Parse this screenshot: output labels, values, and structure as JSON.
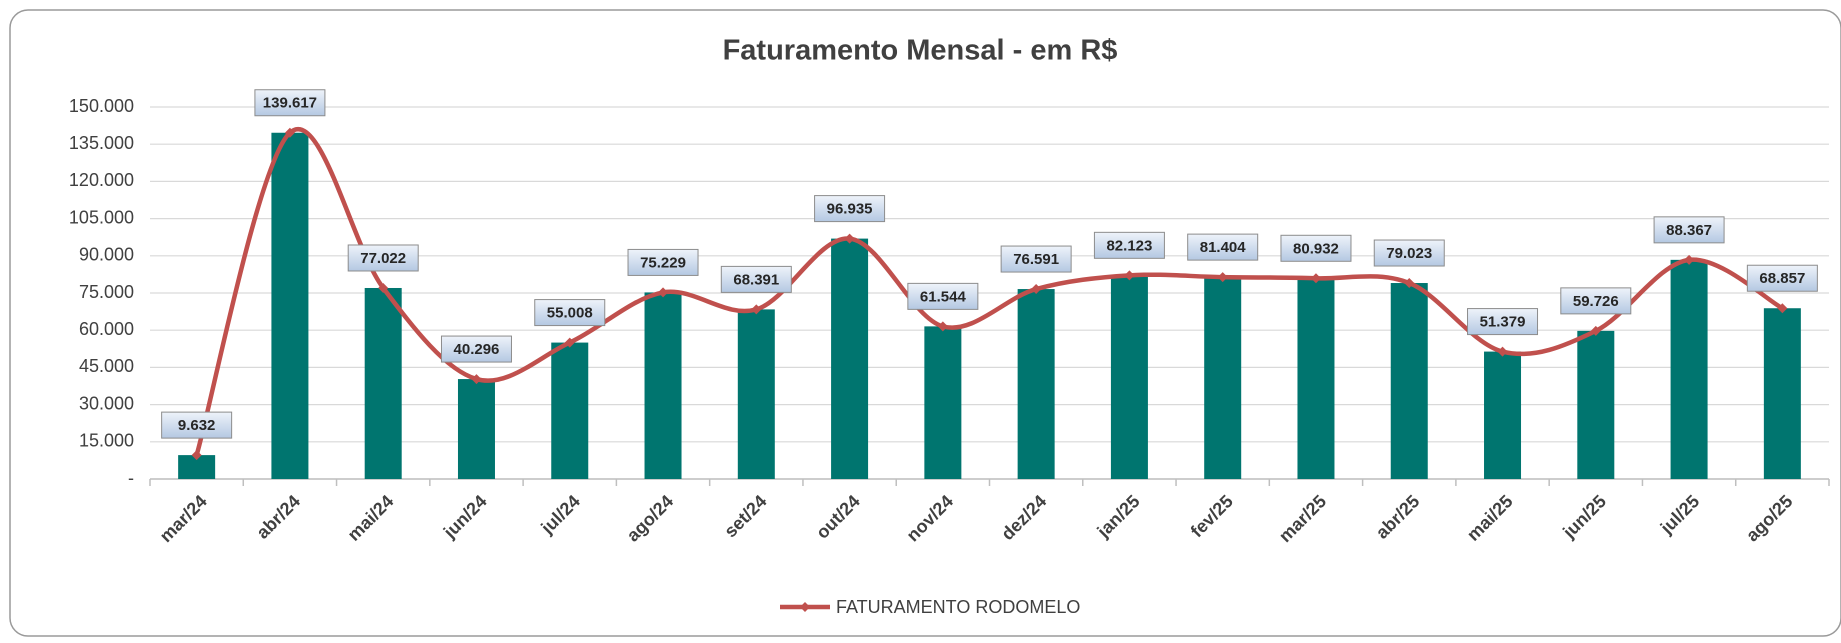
{
  "chart_data": {
    "type": "bar_line",
    "title": "Faturamento Mensal - em R$",
    "categories": [
      "mar/24",
      "abr/24",
      "mai/24",
      "jun/24",
      "jul/24",
      "ago/24",
      "set/24",
      "out/24",
      "nov/24",
      "dez/24",
      "jan/25",
      "fev/25",
      "mar/25",
      "abr/25",
      "mai/25",
      "jun/25",
      "jul/25",
      "ago/25"
    ],
    "series": [
      {
        "name": "FATURAMENTO RODOMELO",
        "color": "#c0504d",
        "bar_color": "#00756f",
        "values": [
          9632,
          139617,
          77022,
          40296,
          55008,
          75229,
          68391,
          96935,
          61544,
          76591,
          82123,
          81404,
          80932,
          79023,
          51379,
          59726,
          88367,
          68857
        ],
        "value_labels": [
          "9.632",
          "139.617",
          "77.022",
          "40.296",
          "55.008",
          "75.229",
          "68.391",
          "96.935",
          "61.544",
          "76.591",
          "82.123",
          "81.404",
          "80.932",
          "79.023",
          "51.379",
          "59.726",
          "88.367",
          "68.857"
        ]
      }
    ],
    "ylim": [
      0,
      150000
    ],
    "yticks": [
      {
        "value": 0,
        "label": "-"
      },
      {
        "value": 15000,
        "label": "15.000"
      },
      {
        "value": 30000,
        "label": "30.000"
      },
      {
        "value": 45000,
        "label": "45.000"
      },
      {
        "value": 60000,
        "label": "60.000"
      },
      {
        "value": 75000,
        "label": "75.000"
      },
      {
        "value": 90000,
        "label": "90.000"
      },
      {
        "value": 105000,
        "label": "105.000"
      },
      {
        "value": 120000,
        "label": "120.000"
      },
      {
        "value": 135000,
        "label": "135.000"
      },
      {
        "value": 150000,
        "label": "150.000"
      }
    ],
    "grid": true,
    "legend": "bottom"
  }
}
